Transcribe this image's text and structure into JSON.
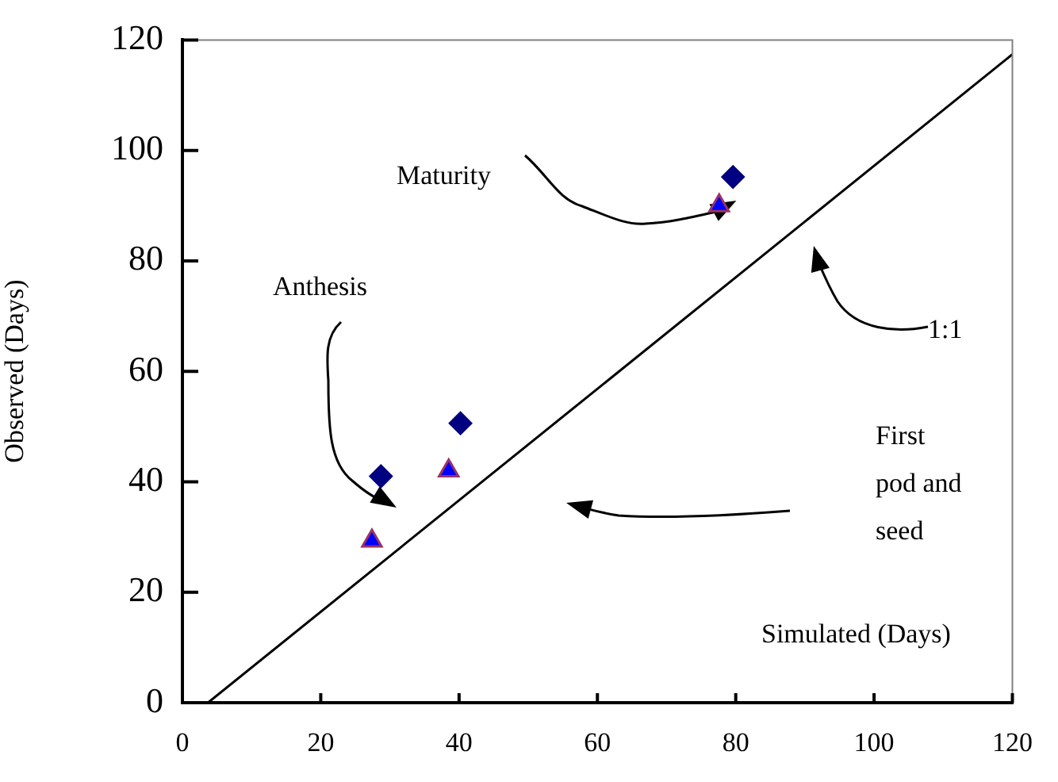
{
  "chart_data": {
    "type": "scatter",
    "xlabel": "Simulated  (Days)",
    "ylabel": "Observed (Days)",
    "xlim": [
      0,
      120
    ],
    "xticks": [
      0,
      20,
      40,
      60,
      80,
      100,
      120
    ],
    "ylim": [
      0,
      120
    ],
    "yticks": [
      0,
      20,
      40,
      60,
      80,
      100,
      120
    ],
    "grid": false,
    "legend": false,
    "series": [
      {
        "type": "scatter",
        "marker": "diamond",
        "color": "#000080",
        "x": [
          28.7,
          40.2,
          79.6
        ],
        "values": [
          41,
          50.6,
          95.2
        ]
      },
      {
        "type": "scatter",
        "marker": "triangle",
        "color": "#0000ff",
        "x": [
          27.4,
          38.5,
          77.6
        ],
        "values": [
          29.3,
          42,
          90
        ]
      },
      {
        "type": "line",
        "marker": "none",
        "color": "#000000",
        "x": [
          3.7,
          120
        ],
        "values": [
          0,
          117.4
        ]
      }
    ],
    "annotations": [
      {
        "text": "Maturity",
        "x": 77.6,
        "y": 90
      },
      "Anthesis",
      "1:1",
      "First pod and seed"
    ]
  }
}
